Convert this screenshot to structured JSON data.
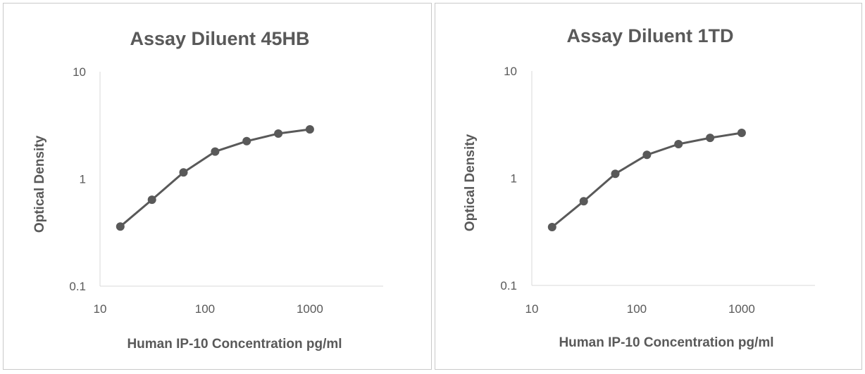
{
  "chart_data": [
    {
      "type": "line",
      "title": "Assay Diluent 45HB",
      "xlabel": "Human IP-10 Concentration pg/ml",
      "ylabel": "Optical Density",
      "xscale": "log",
      "yscale": "log",
      "xlim": [
        10,
        5000
      ],
      "ylim": [
        0.1,
        10
      ],
      "xticks": [
        "10",
        "100",
        "1000"
      ],
      "yticks": [
        "10",
        "1",
        "0.1"
      ],
      "grid": false,
      "series": [
        {
          "name": "Assay Diluent 45HB",
          "color": "#595959",
          "x": [
            15.6,
            31.25,
            62.5,
            125,
            250,
            500,
            1000
          ],
          "y": [
            0.36,
            0.64,
            1.15,
            1.8,
            2.25,
            2.65,
            2.9
          ]
        }
      ]
    },
    {
      "type": "line",
      "title": "Assay Diluent 1TD",
      "xlabel": "Human IP-10 Concentration pg/ml",
      "ylabel": "Optical Density",
      "xscale": "log",
      "yscale": "log",
      "xlim": [
        10,
        5000
      ],
      "ylim": [
        0.1,
        10
      ],
      "xticks": [
        "10",
        "100",
        "1000"
      ],
      "yticks": [
        "10",
        "1",
        "0.1"
      ],
      "grid": false,
      "series": [
        {
          "name": "Assay Diluent 1TD",
          "color": "#595959",
          "x": [
            15.6,
            31.25,
            62.5,
            125,
            250,
            500,
            1000
          ],
          "y": [
            0.35,
            0.61,
            1.1,
            1.65,
            2.08,
            2.38,
            2.65
          ]
        }
      ]
    }
  ]
}
